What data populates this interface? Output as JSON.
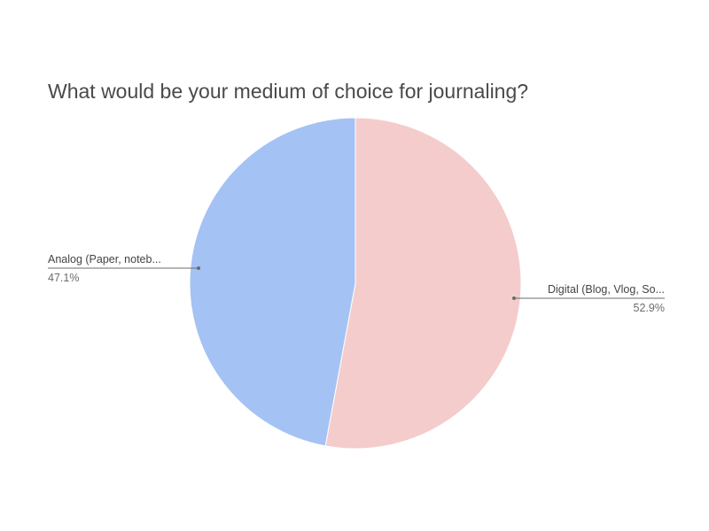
{
  "chart_data": {
    "type": "pie",
    "title": "What would be your medium of choice for journaling?",
    "slices": [
      {
        "label": "Digital (Blog, Vlog, So...",
        "percent_label": "52.9%",
        "value": 52.9,
        "color": "#f4cccc"
      },
      {
        "label": "Analog (Paper, noteb...",
        "percent_label": "47.1%",
        "value": 47.1,
        "color": "#a4c2f4"
      }
    ],
    "start_angle_deg": 0,
    "direction": "clockwise",
    "legend": "none"
  }
}
